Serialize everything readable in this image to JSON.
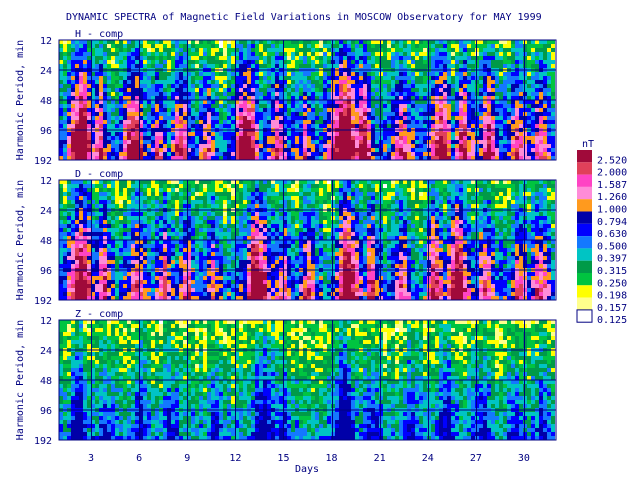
{
  "chart_data": {
    "type": "heatmap",
    "title": "DYNAMIC SPECTRA of Magnetic Field Variations in MOSCOW Observatory for MAY 1999",
    "xlabel": "Days",
    "ylabel": "Harmonic Period, min",
    "xlim": [
      1,
      32
    ],
    "x_ticks": [
      3,
      6,
      9,
      12,
      15,
      18,
      21,
      24,
      27,
      30
    ],
    "x_tick_labels": [
      "3",
      "6",
      "9",
      "12",
      "15",
      "18",
      "21",
      "24",
      "27",
      "30"
    ],
    "y_scale": "log",
    "ylim": [
      12,
      192
    ],
    "y_ticks": [
      12,
      24,
      48,
      96,
      192
    ],
    "y_tick_labels": [
      "12",
      "24",
      "48",
      "96",
      "192"
    ],
    "grid": true,
    "panels": [
      {
        "label": "H - comp",
        "activity": [
          {
            "day": 2.4,
            "width": 0.7,
            "level": 0.95
          },
          {
            "day": 3.6,
            "width": 0.4,
            "level": 0.7
          },
          {
            "day": 5.6,
            "width": 0.6,
            "level": 0.75
          },
          {
            "day": 7.2,
            "width": 0.4,
            "level": 0.55
          },
          {
            "day": 8.6,
            "width": 0.5,
            "level": 0.55
          },
          {
            "day": 10.2,
            "width": 0.4,
            "level": 0.45
          },
          {
            "day": 12.7,
            "width": 0.7,
            "level": 0.85
          },
          {
            "day": 14.6,
            "width": 0.4,
            "level": 0.6
          },
          {
            "day": 16.4,
            "width": 0.4,
            "level": 0.45
          },
          {
            "day": 18.8,
            "width": 0.9,
            "level": 1.0
          },
          {
            "day": 20.0,
            "width": 0.5,
            "level": 0.7
          },
          {
            "day": 22.4,
            "width": 0.5,
            "level": 0.55
          },
          {
            "day": 24.8,
            "width": 0.6,
            "level": 0.8
          },
          {
            "day": 26.2,
            "width": 0.5,
            "level": 0.7
          },
          {
            "day": 27.8,
            "width": 0.5,
            "level": 0.65
          },
          {
            "day": 29.6,
            "width": 0.5,
            "level": 0.6
          },
          {
            "day": 31.1,
            "width": 0.4,
            "level": 0.55
          }
        ]
      },
      {
        "label": "D - comp",
        "activity": [
          {
            "day": 2.4,
            "width": 0.7,
            "level": 0.85
          },
          {
            "day": 3.8,
            "width": 0.4,
            "level": 0.6
          },
          {
            "day": 5.8,
            "width": 0.5,
            "level": 0.6
          },
          {
            "day": 7.6,
            "width": 0.4,
            "level": 0.5
          },
          {
            "day": 9.0,
            "width": 0.4,
            "level": 0.45
          },
          {
            "day": 10.6,
            "width": 0.4,
            "level": 0.4
          },
          {
            "day": 13.4,
            "width": 0.8,
            "level": 0.85
          },
          {
            "day": 15.0,
            "width": 0.4,
            "level": 0.5
          },
          {
            "day": 16.6,
            "width": 0.4,
            "level": 0.45
          },
          {
            "day": 19.0,
            "width": 0.7,
            "level": 0.9
          },
          {
            "day": 20.5,
            "width": 0.4,
            "level": 0.55
          },
          {
            "day": 22.5,
            "width": 0.4,
            "level": 0.5
          },
          {
            "day": 24.5,
            "width": 0.5,
            "level": 0.65
          },
          {
            "day": 25.8,
            "width": 0.6,
            "level": 0.85
          },
          {
            "day": 27.6,
            "width": 0.4,
            "level": 0.5
          },
          {
            "day": 29.8,
            "width": 0.4,
            "level": 0.5
          },
          {
            "day": 31.0,
            "width": 0.4,
            "level": 0.55
          }
        ]
      },
      {
        "label": "Z - comp",
        "activity": [
          {
            "day": 2.2,
            "width": 0.5,
            "level": 0.55
          },
          {
            "day": 4.0,
            "width": 0.4,
            "level": 0.35
          },
          {
            "day": 6.0,
            "width": 0.4,
            "level": 0.4
          },
          {
            "day": 8.0,
            "width": 0.4,
            "level": 0.35
          },
          {
            "day": 10.8,
            "width": 0.4,
            "level": 0.4
          },
          {
            "day": 13.8,
            "width": 0.6,
            "level": 0.55
          },
          {
            "day": 15.0,
            "width": 0.4,
            "level": 0.4
          },
          {
            "day": 18.8,
            "width": 0.6,
            "level": 0.7
          },
          {
            "day": 20.6,
            "width": 0.4,
            "level": 0.4
          },
          {
            "day": 23.0,
            "width": 0.4,
            "level": 0.4
          },
          {
            "day": 25.2,
            "width": 0.5,
            "level": 0.5
          },
          {
            "day": 27.4,
            "width": 0.4,
            "level": 0.4
          },
          {
            "day": 29.5,
            "width": 0.4,
            "level": 0.4
          },
          {
            "day": 31.2,
            "width": 0.4,
            "level": 0.45
          }
        ]
      }
    ],
    "colorbar": {
      "unit": "nT",
      "levels": [
        {
          "label": "2.520",
          "color": "#a00a3a"
        },
        {
          "label": "2.000",
          "color": "#e0405a"
        },
        {
          "label": "1.587",
          "color": "#ff44c4"
        },
        {
          "label": "1.260",
          "color": "#ff8cd8"
        },
        {
          "label": "1.000",
          "color": "#ff9a1e"
        },
        {
          "label": "0.794",
          "color": "#0000a8"
        },
        {
          "label": "0.630",
          "color": "#0000ff"
        },
        {
          "label": "0.500",
          "color": "#1478ff"
        },
        {
          "label": "0.397",
          "color": "#00c4c4"
        },
        {
          "label": "0.315",
          "color": "#009a48"
        },
        {
          "label": "0.250",
          "color": "#00c440"
        },
        {
          "label": "0.198",
          "color": "#ffff00"
        },
        {
          "label": "0.157",
          "color": "#ffff8c"
        },
        {
          "label": "0.125",
          "color": "#ffffff"
        }
      ]
    }
  }
}
